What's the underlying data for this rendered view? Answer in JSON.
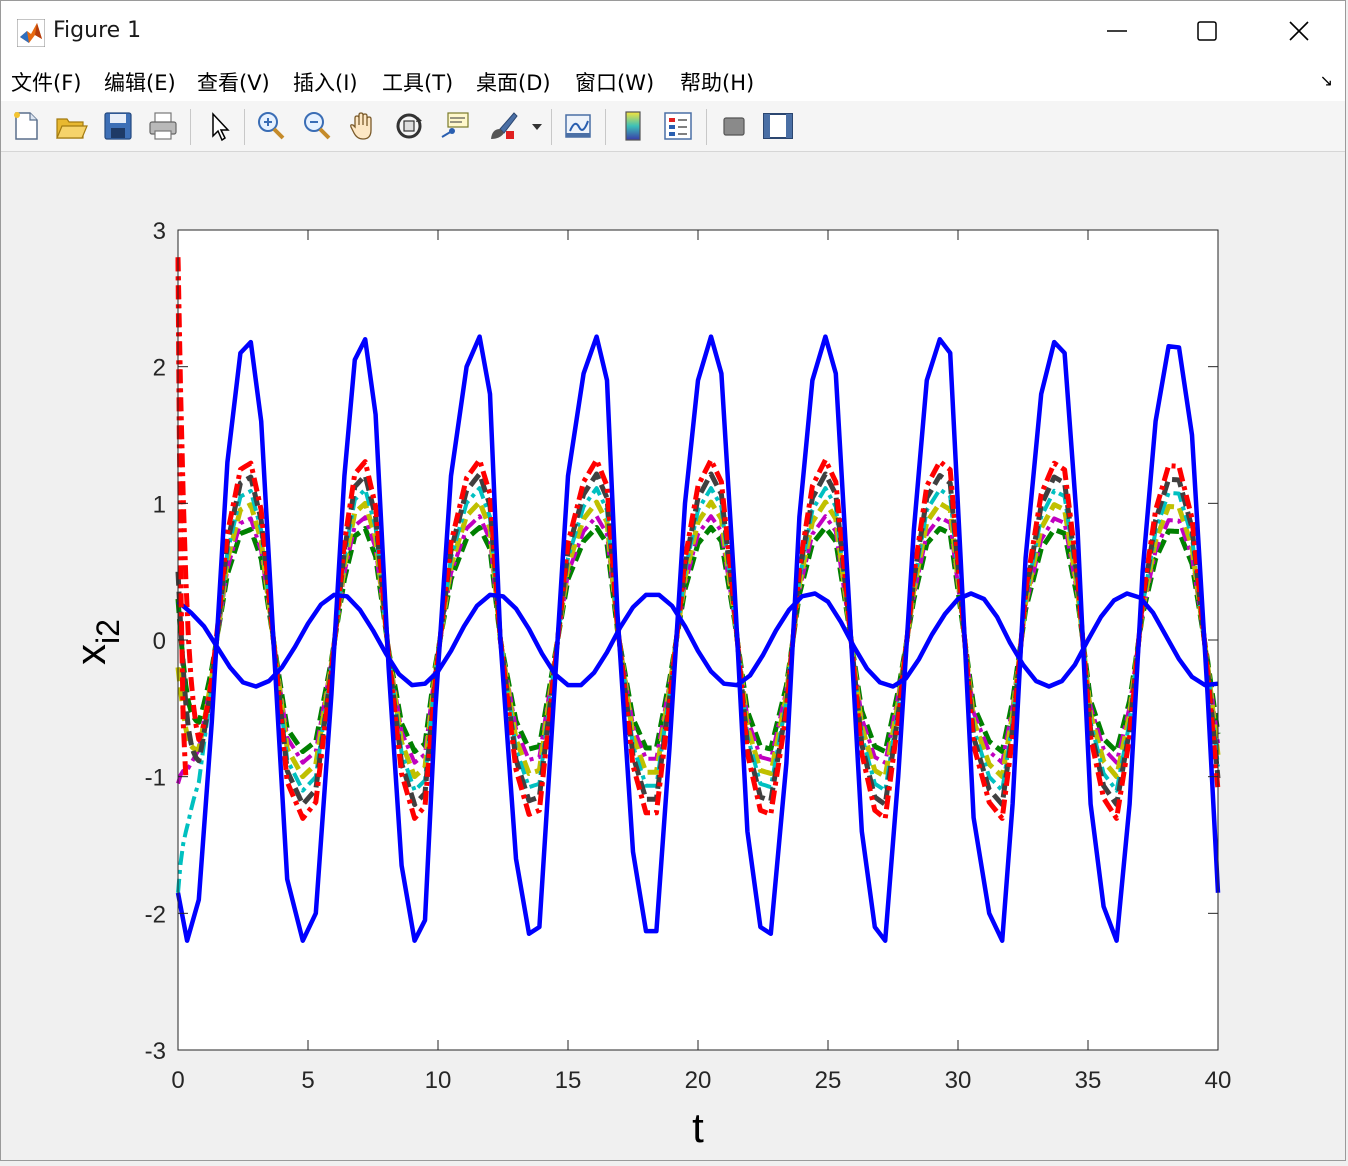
{
  "window": {
    "title": "Figure 1",
    "controls": [
      "minimize",
      "maximize",
      "close"
    ]
  },
  "menu": {
    "items": [
      "文件(F)",
      "编辑(E)",
      "查看(V)",
      "插入(I)",
      "工具(T)",
      "桌面(D)",
      "窗口(W)",
      "帮助(H)"
    ],
    "dock_arrow": "↘"
  },
  "toolbar": {
    "buttons": [
      "new-figure-icon",
      "open-file-icon",
      "save-icon",
      "print-icon",
      "select-arrow-icon",
      "zoom-in-icon",
      "zoom-out-icon",
      "pan-hand-icon",
      "rotate-3d-icon",
      "data-cursor-icon",
      "brush-icon",
      "brush-dropdown-icon",
      "link-plot-icon",
      "colorbar-icon",
      "legend-icon",
      "hide-plot-tools-icon",
      "show-plot-tools-icon"
    ]
  },
  "chart_data": {
    "type": "line",
    "title": "",
    "xlabel": "t",
    "ylabel": "x",
    "ylabel_subscript": "i2",
    "xlim": [
      0,
      40
    ],
    "ylim": [
      -3,
      3
    ],
    "xticks": [
      0,
      5,
      10,
      15,
      20,
      25,
      30,
      35,
      40
    ],
    "yticks": [
      -3,
      -2,
      -1,
      0,
      1,
      2,
      3
    ],
    "grid": false,
    "legend": "none",
    "series": [
      {
        "color": "#0000ff",
        "style": "solid",
        "x": [
          0,
          0.35,
          0.8,
          1.3,
          1.9,
          2.4,
          2.8,
          3.2,
          3.7,
          4.2,
          4.8,
          5.3,
          5.9,
          6.4,
          6.8,
          7.2,
          7.6,
          8.1,
          8.6,
          9.1,
          9.5,
          9.9,
          10.5,
          11.1,
          11.6,
          12.0,
          12.4,
          13.0,
          13.5,
          13.9,
          14.4,
          15.0,
          15.6,
          16.1,
          16.5,
          16.9,
          17.5,
          18.0,
          18.4,
          18.9,
          19.5,
          20.0,
          20.5,
          20.9,
          21.4,
          21.9,
          22.4,
          22.8,
          23.4,
          23.9,
          24.4,
          24.9,
          25.3,
          25.8,
          26.3,
          26.8,
          27.2,
          27.7,
          28.3,
          28.8,
          29.3,
          29.7,
          30.1,
          30.6,
          31.2,
          31.7,
          32.1,
          32.6,
          33.2,
          33.7,
          34.1,
          34.6,
          35.1,
          35.6,
          36.1,
          36.6,
          37.1,
          37.6,
          38.1,
          38.5,
          39.0,
          39.6,
          40.0
        ],
        "y": [
          -1.85,
          -2.2,
          -1.9,
          -0.6,
          1.3,
          2.1,
          2.18,
          1.6,
          -0.1,
          -1.75,
          -2.2,
          -2.0,
          -0.4,
          1.2,
          2.05,
          2.2,
          1.65,
          -0.2,
          -1.65,
          -2.2,
          -2.05,
          -0.5,
          1.2,
          2.0,
          2.22,
          1.8,
          0.0,
          -1.6,
          -2.15,
          -2.1,
          -0.6,
          1.2,
          1.95,
          2.22,
          1.9,
          0.2,
          -1.55,
          -2.13,
          -2.13,
          -0.8,
          1.0,
          1.9,
          2.22,
          1.95,
          0.4,
          -1.4,
          -2.1,
          -2.15,
          -0.9,
          0.9,
          1.9,
          2.22,
          1.95,
          0.3,
          -1.4,
          -2.1,
          -2.2,
          -1.0,
          0.8,
          1.9,
          2.2,
          2.1,
          0.6,
          -1.3,
          -2.0,
          -2.2,
          -1.2,
          0.6,
          1.8,
          2.18,
          2.1,
          0.8,
          -1.2,
          -1.95,
          -2.2,
          -1.2,
          0.5,
          1.6,
          2.15,
          2.14,
          1.5,
          -0.4,
          -1.85
        ]
      },
      {
        "color": "#0000ff",
        "style": "solid",
        "x": [
          0,
          0.5,
          1.0,
          1.5,
          2.0,
          2.5,
          3.0,
          3.5,
          4.0,
          4.5,
          5.0,
          5.5,
          6.0,
          6.5,
          7.0,
          7.5,
          8.0,
          8.5,
          9.0,
          9.5,
          10.0,
          10.5,
          11.0,
          11.5,
          12.0,
          12.5,
          13.0,
          13.5,
          14.0,
          14.5,
          15.0,
          15.5,
          16.0,
          16.5,
          17.0,
          17.5,
          18.0,
          18.5,
          19.0,
          19.5,
          20.0,
          20.5,
          21.0,
          21.5,
          22.0,
          22.5,
          23.0,
          23.5,
          24.0,
          24.5,
          25.0,
          25.5,
          26.0,
          26.5,
          27.0,
          27.5,
          28.0,
          28.5,
          29.0,
          29.5,
          30.0,
          30.5,
          31.0,
          31.5,
          32.0,
          32.5,
          33.0,
          33.5,
          34.0,
          34.5,
          35.0,
          35.5,
          36.0,
          36.5,
          37.0,
          37.5,
          38.0,
          38.5,
          39.0,
          39.5,
          40.0
        ],
        "y": [
          0.28,
          0.2,
          0.1,
          -0.05,
          -0.2,
          -0.31,
          -0.34,
          -0.3,
          -0.2,
          -0.05,
          0.12,
          0.26,
          0.33,
          0.32,
          0.22,
          0.07,
          -0.1,
          -0.25,
          -0.33,
          -0.32,
          -0.23,
          -0.08,
          0.1,
          0.25,
          0.33,
          0.32,
          0.23,
          0.08,
          -0.1,
          -0.25,
          -0.33,
          -0.33,
          -0.24,
          -0.09,
          0.09,
          0.24,
          0.33,
          0.33,
          0.25,
          0.1,
          -0.08,
          -0.23,
          -0.32,
          -0.33,
          -0.26,
          -0.11,
          0.07,
          0.22,
          0.32,
          0.34,
          0.28,
          0.13,
          -0.05,
          -0.21,
          -0.31,
          -0.34,
          -0.28,
          -0.14,
          0.04,
          0.19,
          0.3,
          0.34,
          0.3,
          0.17,
          -0.02,
          -0.18,
          -0.3,
          -0.34,
          -0.3,
          -0.18,
          0.0,
          0.17,
          0.29,
          0.34,
          0.31,
          0.2,
          0.03,
          -0.14,
          -0.27,
          -0.33,
          -0.32
        ]
      },
      {
        "color": "#ff0000",
        "style": "dashdot",
        "amp": 1.0,
        "x": [
          0,
          0.05,
          0.12,
          0.2,
          0.3
        ],
        "y": [
          2.8,
          1.5,
          0.3,
          -0.6,
          -1.0
        ]
      }
    ],
    "damped_followers": [
      {
        "color": "#ff0000",
        "style": "dashdot",
        "width": 5,
        "amp": 1.28,
        "start": 2.8
      },
      {
        "color": "#404040",
        "style": "dashed",
        "width": 5,
        "amp": 1.18,
        "start": 0.5
      },
      {
        "color": "#00c0c0",
        "style": "dashdot",
        "width": 4,
        "amp": 1.08,
        "start": -1.85
      },
      {
        "color": "#c0c000",
        "style": "dashed",
        "width": 5,
        "amp": 0.98,
        "start": -0.2
      },
      {
        "color": "#c000c0",
        "style": "dashdot",
        "width": 4,
        "amp": 0.88,
        "start": -1.05
      },
      {
        "color": "#008000",
        "style": "dashed",
        "width": 5,
        "amp": 0.8,
        "start": 0.3
      }
    ]
  }
}
